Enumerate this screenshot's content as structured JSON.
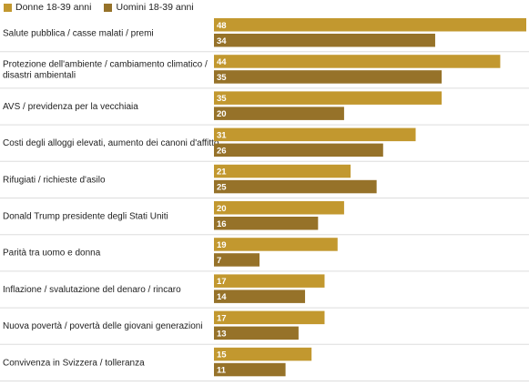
{
  "colors": {
    "women": "#c2982f",
    "men": "#967229",
    "separator": "#dddddd"
  },
  "chart_data": {
    "type": "bar",
    "orientation": "horizontal",
    "categories": [
      [
        "Salute pubblica / casse malati / premi"
      ],
      [
        "Protezione dell'ambiente / cambiamento climatico /",
        "disastri ambientali"
      ],
      [
        "AVS / previdenza per la vecchiaia"
      ],
      [
        "Costi degli alloggi elevati, aumento dei canoni d'affitto"
      ],
      [
        "Rifugiati / richieste d'asilo"
      ],
      [
        "Donald Trump presidente degli Stati Uniti"
      ],
      [
        "Parità tra uomo e donna"
      ],
      [
        "Inflazione / svalutazione del denaro / rincaro"
      ],
      [
        "Nuova povertà / povertà delle giovani generazioni"
      ],
      [
        "Convivenza in Svizzera / tolleranza"
      ]
    ],
    "series": [
      {
        "name": "Donne 18-39 anni",
        "values": [
          48,
          44,
          35,
          31,
          21,
          20,
          19,
          17,
          17,
          15
        ]
      },
      {
        "name": "Uomini 18-39 anni",
        "values": [
          34,
          35,
          20,
          26,
          25,
          16,
          7,
          14,
          13,
          11
        ]
      }
    ],
    "xlim": [
      0,
      48
    ],
    "legend": "top-left",
    "grid": false
  }
}
